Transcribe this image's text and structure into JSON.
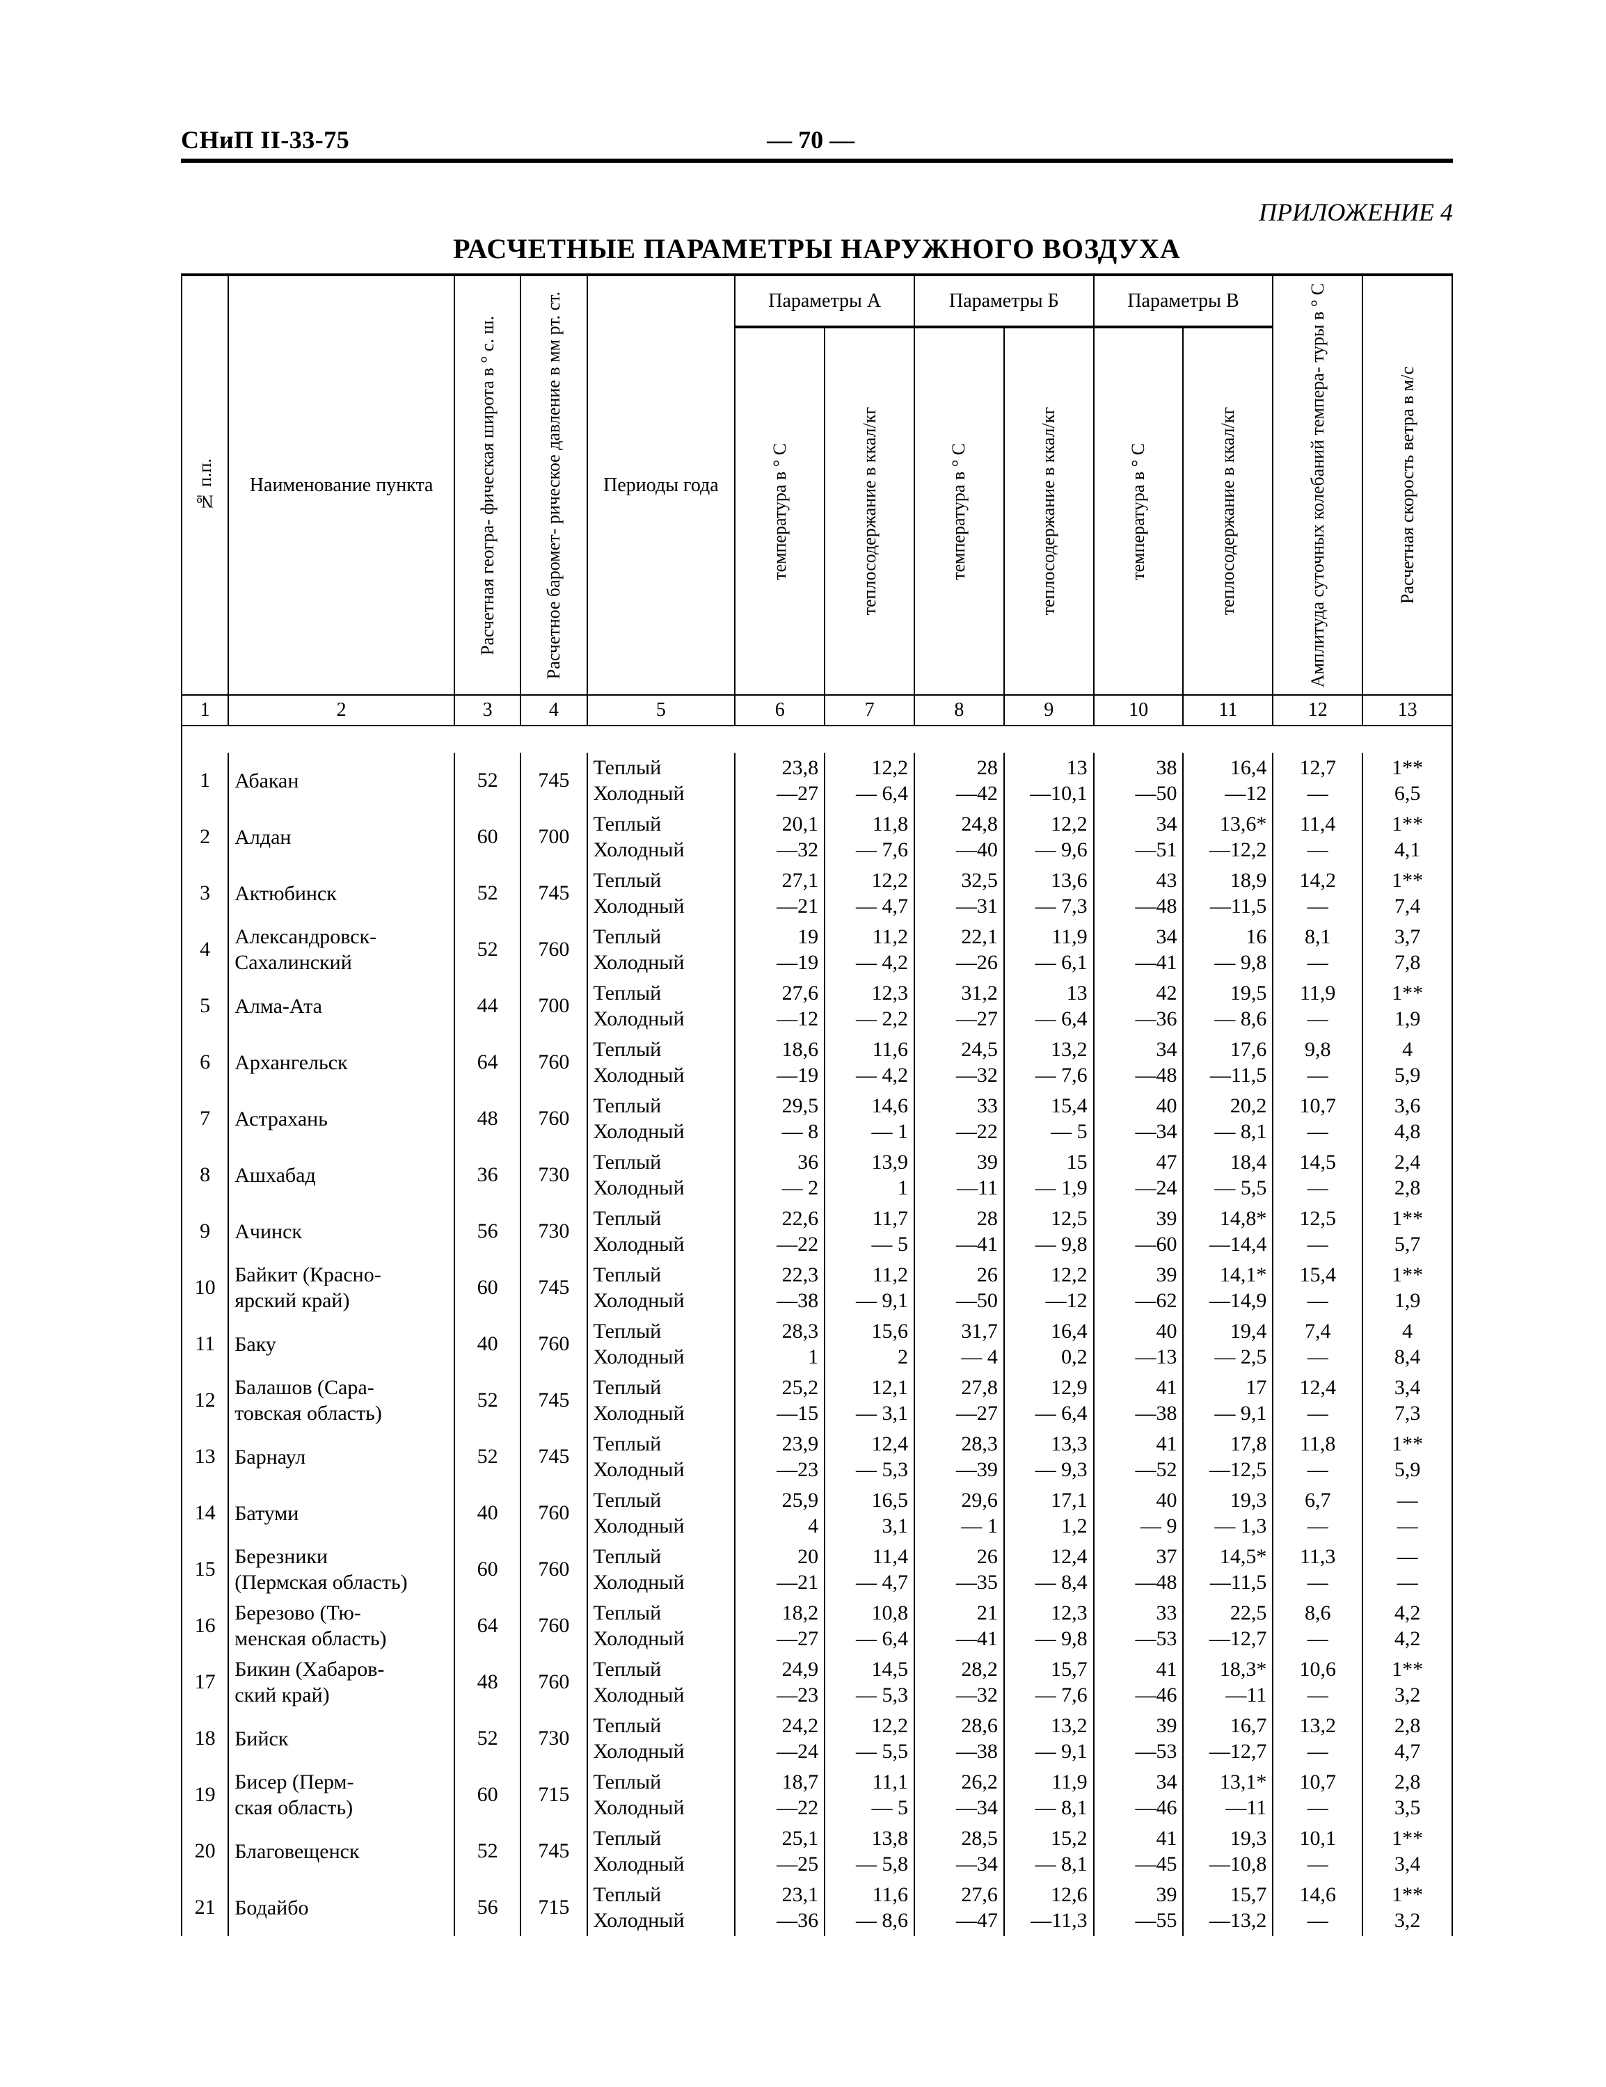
{
  "doc_id": "СНиП II-33-75",
  "page_label": "— 70 —",
  "appendix": "ПРИЛОЖЕНИЕ 4",
  "title": "РАСЧЕТНЫЕ ПАРАМЕТРЫ НАРУЖНОГО ВОЗДУХА",
  "headers": {
    "num": "№ п.п.",
    "name": "Наименование пункта",
    "lat": "Расчетная геогра-\nфическая широта\nв ° с. ш.",
    "press": "Расчетное баромет-\nрическое давление\nв мм рт. ст.",
    "period": "Периоды\nгода",
    "paramA": "Параметры А",
    "paramB": "Параметры Б",
    "paramV": "Параметры В",
    "temp": "температура\nв ° С",
    "heat": "теплосодержание\nв ккал/кг",
    "ampl": "Амплитуда суточных\nколебаний темпера-\nтуры в ° С",
    "wind": "Расчетная скорость\nветра в м/с",
    "colnums": [
      "1",
      "2",
      "3",
      "4",
      "5",
      "6",
      "7",
      "8",
      "9",
      "10",
      "11",
      "12",
      "13"
    ]
  },
  "periods": {
    "warm": "Теплый",
    "cold": "Холодный"
  },
  "rows": [
    {
      "n": "1",
      "name": "Абакан",
      "lat": "52",
      "press": "745",
      "A_t_w": "23,8",
      "A_t_c": "—27",
      "A_h_w": "12,2",
      "A_h_c": "— 6,4",
      "B_t_w": "28",
      "B_t_c": "—42",
      "B_h_w": "13",
      "B_h_c": "—10,1",
      "V_t_w": "38",
      "V_t_c": "—50",
      "V_h_w": "16,4",
      "V_h_c": "—12",
      "amp_w": "12,7",
      "amp_c": "—",
      "wind_w": "1**",
      "wind_c": "6,5"
    },
    {
      "n": "2",
      "name": "Алдан",
      "lat": "60",
      "press": "700",
      "A_t_w": "20,1",
      "A_t_c": "—32",
      "A_h_w": "11,8",
      "A_h_c": "— 7,6",
      "B_t_w": "24,8",
      "B_t_c": "—40",
      "B_h_w": "12,2",
      "B_h_c": "— 9,6",
      "V_t_w": "34",
      "V_t_c": "—51",
      "V_h_w": "13,6*",
      "V_h_c": "—12,2",
      "amp_w": "11,4",
      "amp_c": "—",
      "wind_w": "1**",
      "wind_c": "4,1"
    },
    {
      "n": "3",
      "name": "Актюбинск",
      "lat": "52",
      "press": "745",
      "A_t_w": "27,1",
      "A_t_c": "—21",
      "A_h_w": "12,2",
      "A_h_c": "— 4,7",
      "B_t_w": "32,5",
      "B_t_c": "—31",
      "B_h_w": "13,6",
      "B_h_c": "— 7,3",
      "V_t_w": "43",
      "V_t_c": "—48",
      "V_h_w": "18,9",
      "V_h_c": "—11,5",
      "amp_w": "14,2",
      "amp_c": "—",
      "wind_w": "1**",
      "wind_c": "7,4"
    },
    {
      "n": "4",
      "name": "Александровск-\nСахалинский",
      "lat": "52",
      "press": "760",
      "A_t_w": "19",
      "A_t_c": "—19",
      "A_h_w": "11,2",
      "A_h_c": "— 4,2",
      "B_t_w": "22,1",
      "B_t_c": "—26",
      "B_h_w": "11,9",
      "B_h_c": "— 6,1",
      "V_t_w": "34",
      "V_t_c": "—41",
      "V_h_w": "16",
      "V_h_c": "— 9,8",
      "amp_w": "8,1",
      "amp_c": "—",
      "wind_w": "3,7",
      "wind_c": "7,8"
    },
    {
      "n": "5",
      "name": "Алма-Ата",
      "lat": "44",
      "press": "700",
      "A_t_w": "27,6",
      "A_t_c": "—12",
      "A_h_w": "12,3",
      "A_h_c": "— 2,2",
      "B_t_w": "31,2",
      "B_t_c": "—27",
      "B_h_w": "13",
      "B_h_c": "— 6,4",
      "V_t_w": "42",
      "V_t_c": "—36",
      "V_h_w": "19,5",
      "V_h_c": "— 8,6",
      "amp_w": "11,9",
      "amp_c": "—",
      "wind_w": "1**",
      "wind_c": "1,9"
    },
    {
      "n": "6",
      "name": "Архангельск",
      "lat": "64",
      "press": "760",
      "A_t_w": "18,6",
      "A_t_c": "—19",
      "A_h_w": "11,6",
      "A_h_c": "— 4,2",
      "B_t_w": "24,5",
      "B_t_c": "—32",
      "B_h_w": "13,2",
      "B_h_c": "— 7,6",
      "V_t_w": "34",
      "V_t_c": "—48",
      "V_h_w": "17,6",
      "V_h_c": "—11,5",
      "amp_w": "9,8",
      "amp_c": "—",
      "wind_w": "4",
      "wind_c": "5,9"
    },
    {
      "n": "7",
      "name": "Астрахань",
      "lat": "48",
      "press": "760",
      "A_t_w": "29,5",
      "A_t_c": "— 8",
      "A_h_w": "14,6",
      "A_h_c": "— 1",
      "B_t_w": "33",
      "B_t_c": "—22",
      "B_h_w": "15,4",
      "B_h_c": "— 5",
      "V_t_w": "40",
      "V_t_c": "—34",
      "V_h_w": "20,2",
      "V_h_c": "— 8,1",
      "amp_w": "10,7",
      "amp_c": "—",
      "wind_w": "3,6",
      "wind_c": "4,8"
    },
    {
      "n": "8",
      "name": "Ашхабад",
      "lat": "36",
      "press": "730",
      "A_t_w": "36",
      "A_t_c": "— 2",
      "A_h_w": "13,9",
      "A_h_c": "1",
      "B_t_w": "39",
      "B_t_c": "—11",
      "B_h_w": "15",
      "B_h_c": "— 1,9",
      "V_t_w": "47",
      "V_t_c": "—24",
      "V_h_w": "18,4",
      "V_h_c": "— 5,5",
      "amp_w": "14,5",
      "amp_c": "—",
      "wind_w": "2,4",
      "wind_c": "2,8"
    },
    {
      "n": "9",
      "name": "Ачинск",
      "lat": "56",
      "press": "730",
      "A_t_w": "22,6",
      "A_t_c": "—22",
      "A_h_w": "11,7",
      "A_h_c": "— 5",
      "B_t_w": "28",
      "B_t_c": "—41",
      "B_h_w": "12,5",
      "B_h_c": "— 9,8",
      "V_t_w": "39",
      "V_t_c": "—60",
      "V_h_w": "14,8*",
      "V_h_c": "—14,4",
      "amp_w": "12,5",
      "amp_c": "—",
      "wind_w": "1**",
      "wind_c": "5,7"
    },
    {
      "n": "10",
      "name": "Байкит (Красно-\nярский край)",
      "lat": "60",
      "press": "745",
      "A_t_w": "22,3",
      "A_t_c": "—38",
      "A_h_w": "11,2",
      "A_h_c": "— 9,1",
      "B_t_w": "26",
      "B_t_c": "—50",
      "B_h_w": "12,2",
      "B_h_c": "—12",
      "V_t_w": "39",
      "V_t_c": "—62",
      "V_h_w": "14,1*",
      "V_h_c": "—14,9",
      "amp_w": "15,4",
      "amp_c": "—",
      "wind_w": "1**",
      "wind_c": "1,9"
    },
    {
      "n": "11",
      "name": "Баку",
      "lat": "40",
      "press": "760",
      "A_t_w": "28,3",
      "A_t_c": "1",
      "A_h_w": "15,6",
      "A_h_c": "2",
      "B_t_w": "31,7",
      "B_t_c": "— 4",
      "B_h_w": "16,4",
      "B_h_c": "0,2",
      "V_t_w": "40",
      "V_t_c": "—13",
      "V_h_w": "19,4",
      "V_h_c": "— 2,5",
      "amp_w": "7,4",
      "amp_c": "—",
      "wind_w": "4",
      "wind_c": "8,4"
    },
    {
      "n": "12",
      "name": "Балашов (Сара-\nтовская область)",
      "lat": "52",
      "press": "745",
      "A_t_w": "25,2",
      "A_t_c": "—15",
      "A_h_w": "12,1",
      "A_h_c": "— 3,1",
      "B_t_w": "27,8",
      "B_t_c": "—27",
      "B_h_w": "12,9",
      "B_h_c": "— 6,4",
      "V_t_w": "41",
      "V_t_c": "—38",
      "V_h_w": "17",
      "V_h_c": "— 9,1",
      "amp_w": "12,4",
      "amp_c": "—",
      "wind_w": "3,4",
      "wind_c": "7,3"
    },
    {
      "n": "13",
      "name": "Барнаул",
      "lat": "52",
      "press": "745",
      "A_t_w": "23,9",
      "A_t_c": "—23",
      "A_h_w": "12,4",
      "A_h_c": "— 5,3",
      "B_t_w": "28,3",
      "B_t_c": "—39",
      "B_h_w": "13,3",
      "B_h_c": "— 9,3",
      "V_t_w": "41",
      "V_t_c": "—52",
      "V_h_w": "17,8",
      "V_h_c": "—12,5",
      "amp_w": "11,8",
      "amp_c": "—",
      "wind_w": "1**",
      "wind_c": "5,9"
    },
    {
      "n": "14",
      "name": "Батуми",
      "lat": "40",
      "press": "760",
      "A_t_w": "25,9",
      "A_t_c": "4",
      "A_h_w": "16,5",
      "A_h_c": "3,1",
      "B_t_w": "29,6",
      "B_t_c": "— 1",
      "B_h_w": "17,1",
      "B_h_c": "1,2",
      "V_t_w": "40",
      "V_t_c": "— 9",
      "V_h_w": "19,3",
      "V_h_c": "— 1,3",
      "amp_w": "6,7",
      "amp_c": "—",
      "wind_w": "—",
      "wind_c": "—"
    },
    {
      "n": "15",
      "name": "Березники\n(Пермская область)",
      "lat": "60",
      "press": "760",
      "A_t_w": "20",
      "A_t_c": "—21",
      "A_h_w": "11,4",
      "A_h_c": "— 4,7",
      "B_t_w": "26",
      "B_t_c": "—35",
      "B_h_w": "12,4",
      "B_h_c": "— 8,4",
      "V_t_w": "37",
      "V_t_c": "—48",
      "V_h_w": "14,5*",
      "V_h_c": "—11,5",
      "amp_w": "11,3",
      "amp_c": "—",
      "wind_w": "—",
      "wind_c": "—"
    },
    {
      "n": "16",
      "name": "Березово (Тю-\nменская область)",
      "lat": "64",
      "press": "760",
      "A_t_w": "18,2",
      "A_t_c": "—27",
      "A_h_w": "10,8",
      "A_h_c": "— 6,4",
      "B_t_w": "21",
      "B_t_c": "—41",
      "B_h_w": "12,3",
      "B_h_c": "— 9,8",
      "V_t_w": "33",
      "V_t_c": "—53",
      "V_h_w": "22,5",
      "V_h_c": "—12,7",
      "amp_w": "8,6",
      "amp_c": "—",
      "wind_w": "4,2",
      "wind_c": "4,2"
    },
    {
      "n": "17",
      "name": "Бикин (Хабаров-\nский край)",
      "lat": "48",
      "press": "760",
      "A_t_w": "24,9",
      "A_t_c": "—23",
      "A_h_w": "14,5",
      "A_h_c": "— 5,3",
      "B_t_w": "28,2",
      "B_t_c": "—32",
      "B_h_w": "15,7",
      "B_h_c": "— 7,6",
      "V_t_w": "41",
      "V_t_c": "—46",
      "V_h_w": "18,3*",
      "V_h_c": "—11",
      "amp_w": "10,6",
      "amp_c": "—",
      "wind_w": "1**",
      "wind_c": "3,2"
    },
    {
      "n": "18",
      "name": "Бийск",
      "lat": "52",
      "press": "730",
      "A_t_w": "24,2",
      "A_t_c": "—24",
      "A_h_w": "12,2",
      "A_h_c": "— 5,5",
      "B_t_w": "28,6",
      "B_t_c": "—38",
      "B_h_w": "13,2",
      "B_h_c": "— 9,1",
      "V_t_w": "39",
      "V_t_c": "—53",
      "V_h_w": "16,7",
      "V_h_c": "—12,7",
      "amp_w": "13,2",
      "amp_c": "—",
      "wind_w": "2,8",
      "wind_c": "4,7"
    },
    {
      "n": "19",
      "name": "Бисер (Перм-\nская область)",
      "lat": "60",
      "press": "715",
      "A_t_w": "18,7",
      "A_t_c": "—22",
      "A_h_w": "11,1",
      "A_h_c": "— 5",
      "B_t_w": "26,2",
      "B_t_c": "—34",
      "B_h_w": "11,9",
      "B_h_c": "— 8,1",
      "V_t_w": "34",
      "V_t_c": "—46",
      "V_h_w": "13,1*",
      "V_h_c": "—11",
      "amp_w": "10,7",
      "amp_c": "—",
      "wind_w": "2,8",
      "wind_c": "3,5"
    },
    {
      "n": "20",
      "name": "Благовещенск",
      "lat": "52",
      "press": "745",
      "A_t_w": "25,1",
      "A_t_c": "—25",
      "A_h_w": "13,8",
      "A_h_c": "— 5,8",
      "B_t_w": "28,5",
      "B_t_c": "—34",
      "B_h_w": "15,2",
      "B_h_c": "— 8,1",
      "V_t_w": "41",
      "V_t_c": "—45",
      "V_h_w": "19,3",
      "V_h_c": "—10,8",
      "amp_w": "10,1",
      "amp_c": "—",
      "wind_w": "1**",
      "wind_c": "3,4"
    },
    {
      "n": "21",
      "name": "Бодайбо",
      "lat": "56",
      "press": "715",
      "A_t_w": "23,1",
      "A_t_c": "—36",
      "A_h_w": "11,6",
      "A_h_c": "— 8,6",
      "B_t_w": "27,6",
      "B_t_c": "—47",
      "B_h_w": "12,6",
      "B_h_c": "—11,3",
      "V_t_w": "39",
      "V_t_c": "—55",
      "V_h_w": "15,7",
      "V_h_c": "—13,2",
      "amp_w": "14,6",
      "amp_c": "—",
      "wind_w": "1**",
      "wind_c": "3,2"
    }
  ]
}
